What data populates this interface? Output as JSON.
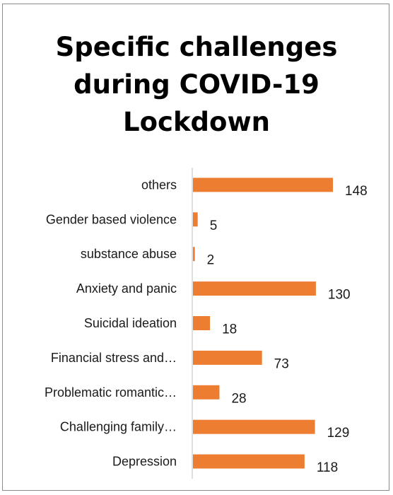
{
  "chart_data": {
    "type": "bar",
    "orientation": "horizontal",
    "title_lines": [
      "Specific challenges",
      "during COVID-19",
      "Lockdown"
    ],
    "categories": [
      "others",
      "Gender based violence",
      "substance abuse",
      "Anxiety and panic",
      "Suicidal ideation",
      "Financial stress and…",
      "Problematic romantic…",
      "Challenging family…",
      "Depression"
    ],
    "values": [
      148,
      5,
      2,
      130,
      18,
      73,
      28,
      129,
      118
    ],
    "bar_color": "#ed7d31",
    "axis_color": "#bfbfbf",
    "grid": false,
    "legend": "none",
    "data_labels": true
  }
}
